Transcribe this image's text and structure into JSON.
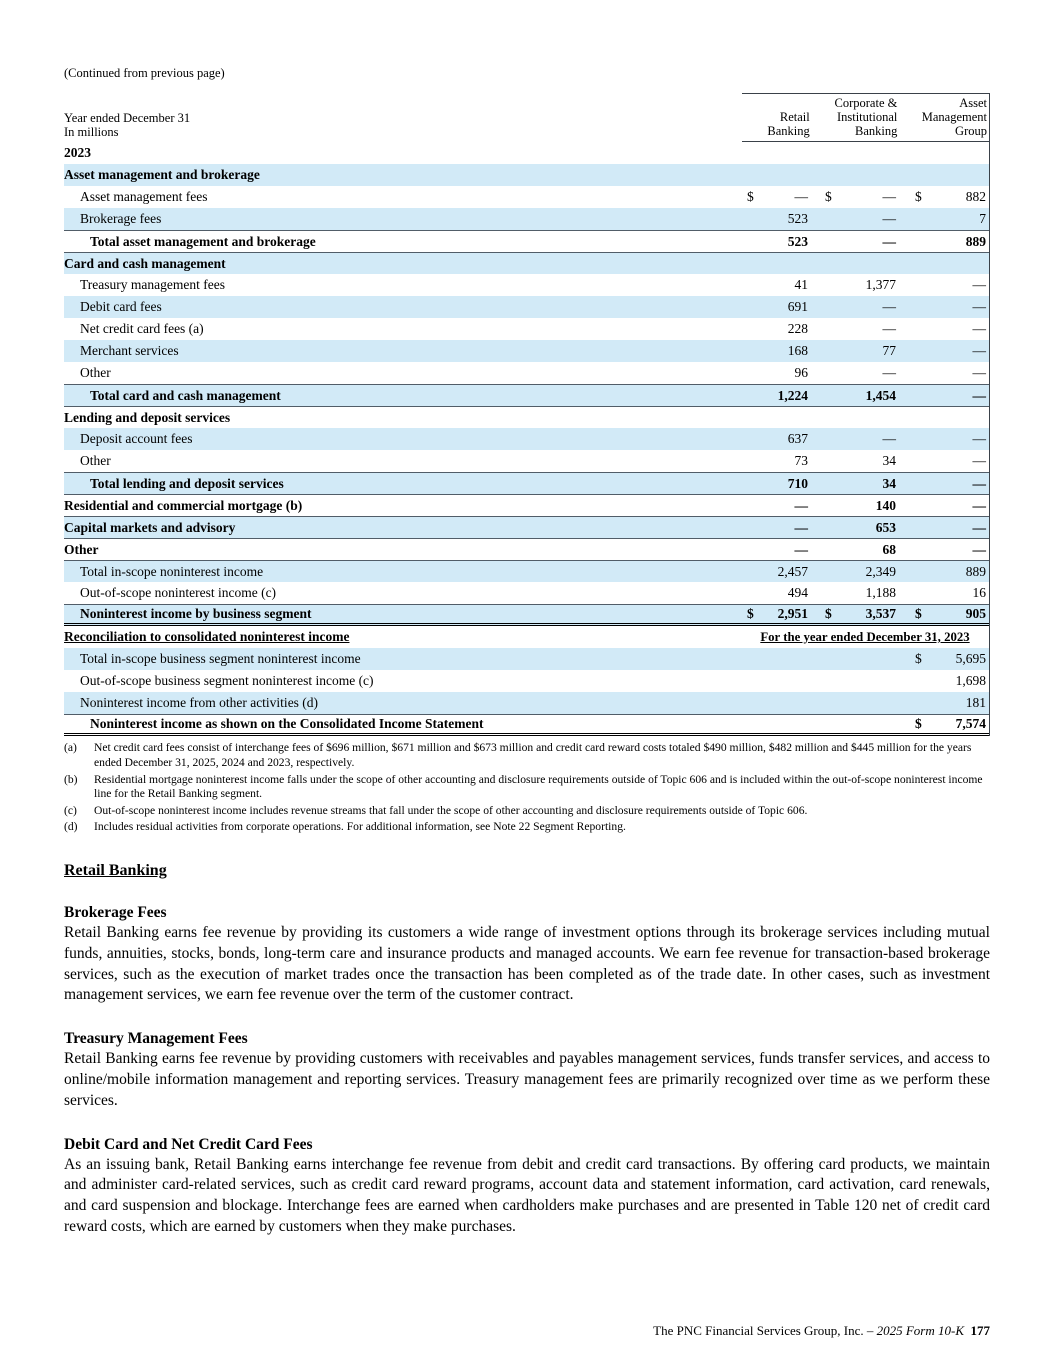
{
  "page": {
    "continued_note": "(Continued from previous page)",
    "footer": {
      "company_text": "The PNC Financial Services Group, Inc. – ",
      "form_text": "2025 Form 10-K",
      "page_number": "177"
    }
  },
  "table": {
    "shade_color": "#d2eaf7",
    "header": {
      "left_line1": "Year ended December 31",
      "left_line2": "In millions",
      "columns": [
        {
          "lines": [
            "Retail",
            "Banking"
          ]
        },
        {
          "lines": [
            "Corporate &",
            "Institutional",
            "Banking"
          ]
        },
        {
          "lines": [
            "Asset",
            "Management",
            "Group"
          ]
        }
      ]
    },
    "recon_banner": "For the year ended December 31, 2023",
    "rows": [
      {
        "type": "year",
        "label": "2023",
        "bold": true
      },
      {
        "type": "section",
        "label": "Asset management and brokerage",
        "bold": true,
        "shaded": true
      },
      {
        "type": "data",
        "label": "Asset management fees",
        "indent": 1,
        "cells": [
          {
            "dollar": true,
            "value": "—"
          },
          {
            "dollar": true,
            "value": "—"
          },
          {
            "dollar": true,
            "value": "882"
          }
        ]
      },
      {
        "type": "data",
        "label": "Brokerage fees",
        "indent": 1,
        "shaded": true,
        "cells": [
          {
            "value": "523"
          },
          {
            "value": "—"
          },
          {
            "value": "7"
          }
        ]
      },
      {
        "type": "data",
        "label": "Total asset management and brokerage",
        "indent": 2,
        "bold": true,
        "rule_top": true,
        "cells": [
          {
            "value": "523"
          },
          {
            "value": "—"
          },
          {
            "value": "889"
          }
        ]
      },
      {
        "type": "section",
        "label": "Card and cash management",
        "bold": true,
        "shaded": true,
        "rule_top": true
      },
      {
        "type": "data",
        "label": "Treasury management fees",
        "indent": 1,
        "cells": [
          {
            "value": "41"
          },
          {
            "value": "1,377"
          },
          {
            "value": "—"
          }
        ]
      },
      {
        "type": "data",
        "label": "Debit card fees",
        "indent": 1,
        "shaded": true,
        "cells": [
          {
            "value": "691"
          },
          {
            "value": "—"
          },
          {
            "value": "—"
          }
        ]
      },
      {
        "type": "data",
        "label": "Net credit card fees (a)",
        "indent": 1,
        "cells": [
          {
            "value": "228"
          },
          {
            "value": "—"
          },
          {
            "value": "—"
          }
        ]
      },
      {
        "type": "data",
        "label": "Merchant services",
        "indent": 1,
        "shaded": true,
        "cells": [
          {
            "value": "168"
          },
          {
            "value": "77"
          },
          {
            "value": "—"
          }
        ]
      },
      {
        "type": "data",
        "label": "Other",
        "indent": 1,
        "cells": [
          {
            "value": "96"
          },
          {
            "value": "—"
          },
          {
            "value": "—"
          }
        ]
      },
      {
        "type": "data",
        "label": "Total card and cash management",
        "indent": 2,
        "bold": true,
        "shaded": true,
        "rule_top": true,
        "cells": [
          {
            "value": "1,224"
          },
          {
            "value": "1,454"
          },
          {
            "value": "—"
          }
        ]
      },
      {
        "type": "section",
        "label": "Lending and deposit services",
        "bold": true,
        "rule_top": true
      },
      {
        "type": "data",
        "label": "Deposit account fees",
        "indent": 1,
        "shaded": true,
        "cells": [
          {
            "value": "637"
          },
          {
            "value": "—"
          },
          {
            "value": "—"
          }
        ]
      },
      {
        "type": "data",
        "label": "Other",
        "indent": 1,
        "cells": [
          {
            "value": "73"
          },
          {
            "value": "34"
          },
          {
            "value": "—"
          }
        ]
      },
      {
        "type": "data",
        "label": "Total lending and deposit services",
        "indent": 2,
        "bold": true,
        "shaded": true,
        "rule_top": true,
        "cells": [
          {
            "value": "710"
          },
          {
            "value": "34"
          },
          {
            "value": "—"
          }
        ]
      },
      {
        "type": "data",
        "label": "Residential and commercial mortgage (b)",
        "bold": true,
        "rule_top": true,
        "cells": [
          {
            "value": "—"
          },
          {
            "value": "140"
          },
          {
            "value": "—"
          }
        ]
      },
      {
        "type": "data",
        "label": "Capital markets and advisory",
        "bold": true,
        "shaded": true,
        "rule_top": true,
        "cells": [
          {
            "value": "—"
          },
          {
            "value": "653"
          },
          {
            "value": "—"
          }
        ]
      },
      {
        "type": "data",
        "label": "Other",
        "bold": true,
        "rule_top": true,
        "cells": [
          {
            "value": "—"
          },
          {
            "value": "68"
          },
          {
            "value": "—"
          }
        ]
      },
      {
        "type": "data",
        "label": "Total in-scope noninterest income",
        "indent": 1,
        "shaded": true,
        "rule_top": true,
        "cells": [
          {
            "value": "2,457"
          },
          {
            "value": "2,349"
          },
          {
            "value": "889"
          }
        ]
      },
      {
        "type": "data",
        "label": "Out-of-scope noninterest income (c)",
        "indent": 1,
        "cells": [
          {
            "value": "494"
          },
          {
            "value": "1,188"
          },
          {
            "value": "16"
          }
        ]
      },
      {
        "type": "data",
        "label": "Noninterest income by business segment",
        "indent": 1,
        "bold": true,
        "shaded": true,
        "rule_top": true,
        "rule_bottom_double": true,
        "cells": [
          {
            "dollar": true,
            "value": "2,951"
          },
          {
            "dollar": true,
            "value": "3,537"
          },
          {
            "dollar": true,
            "value": "905"
          }
        ]
      },
      {
        "type": "recon",
        "label": "Reconciliation to consolidated noninterest income",
        "bold": true
      },
      {
        "type": "data",
        "label": "Total in-scope business segment noninterest income",
        "indent": 1,
        "shaded": true,
        "cells": [
          null,
          null,
          {
            "dollar": true,
            "value": "5,695"
          }
        ]
      },
      {
        "type": "data",
        "label": "Out-of-scope business segment noninterest income (c)",
        "indent": 1,
        "cells": [
          null,
          null,
          {
            "value": "1,698"
          }
        ]
      },
      {
        "type": "data",
        "label": "Noninterest income from other activities (d)",
        "indent": 1,
        "shaded": true,
        "cells": [
          null,
          null,
          {
            "value": "181"
          }
        ]
      },
      {
        "type": "data",
        "label": "Noninterest income as shown on the Consolidated Income Statement",
        "indent": 2,
        "bold": true,
        "rule_top": true,
        "rule_bottom_double": true,
        "cells": [
          null,
          null,
          {
            "dollar": true,
            "value": "7,574"
          }
        ]
      }
    ]
  },
  "footnotes": [
    {
      "marker": "(a)",
      "text": "Net credit card fees consist of interchange fees of $696 million, $671 million and $673 million and credit card reward costs totaled $490 million, $482 million and $445 million for the years ended December 31, 2025, 2024 and 2023, respectively."
    },
    {
      "marker": "(b)",
      "text": "Residential mortgage noninterest income falls under the scope of other accounting and disclosure requirements outside of Topic 606 and is included within the out-of-scope noninterest income line for the Retail Banking segment."
    },
    {
      "marker": "(c)",
      "text": "Out-of-scope noninterest income includes revenue streams that fall under the scope of other accounting and disclosure requirements outside of Topic 606."
    },
    {
      "marker": "(d)",
      "text": "Includes residual activities from corporate operations. For additional information, see Note 22 Segment Reporting."
    }
  ],
  "sections": {
    "title": "Retail Banking",
    "blocks": [
      {
        "heading": "Brokerage Fees",
        "body": "Retail Banking earns fee revenue by providing its customers a wide range of investment options through its brokerage services including mutual funds, annuities, stocks, bonds, long-term care and insurance products and managed accounts. We earn fee revenue for transaction-based brokerage services, such as the execution of market trades once the transaction has been completed as of the trade date. In other cases, such as investment management services, we earn fee revenue over the term of the customer contract."
      },
      {
        "heading": "Treasury Management Fees",
        "body": "Retail Banking earns fee revenue by providing customers with receivables and payables management services, funds transfer services, and access to online/mobile information management and reporting services. Treasury management fees are primarily recognized over time as we perform these services."
      },
      {
        "heading": "Debit Card and Net Credit Card Fees",
        "body": "As an issuing bank, Retail Banking earns interchange fee revenue from debit and credit card transactions. By offering card products, we maintain and administer card-related services, such as credit card reward programs, account data and statement information, card activation, card renewals, and card suspension and blockage. Interchange fees are earned when cardholders make purchases and are presented in Table 120 net of credit card reward costs, which are earned by customers when they make purchases."
      }
    ]
  }
}
